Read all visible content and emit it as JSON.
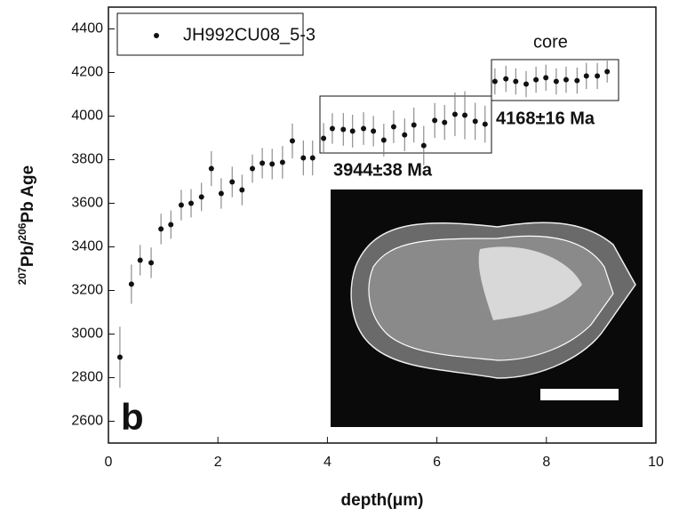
{
  "chart_data": {
    "type": "scatter",
    "x_label": "depth(μm)",
    "y_label": [
      "207",
      "Pb/",
      "206",
      "Pb Age"
    ],
    "panel_label": "b",
    "annotations": [
      "3944±38 Ma",
      "4168±16 Ma",
      "core"
    ],
    "xlim": [
      0,
      10
    ],
    "ylim": [
      2500,
      4500
    ],
    "xticks": [
      0,
      2,
      4,
      6,
      8,
      10
    ],
    "yticks": [
      2600,
      2800,
      3000,
      3200,
      3400,
      3600,
      3800,
      4000,
      4200,
      4400
    ],
    "legend": "upper left",
    "series": [
      {
        "name": "JH992CU08_5-3",
        "color": "#111111",
        "x": [
          0.21,
          0.42,
          0.58,
          0.78,
          0.96,
          1.14,
          1.33,
          1.51,
          1.7,
          1.88,
          2.06,
          2.26,
          2.44,
          2.63,
          2.81,
          2.99,
          3.18,
          3.36,
          3.56,
          3.73,
          3.93,
          4.09,
          4.29,
          4.46,
          4.66,
          4.84,
          5.03,
          5.21,
          5.41,
          5.58,
          5.76,
          5.96,
          6.14,
          6.33,
          6.51,
          6.7,
          6.88,
          7.06,
          7.26,
          7.44,
          7.63,
          7.81,
          7.99,
          8.18,
          8.36,
          8.56,
          8.73,
          8.93,
          9.11
        ],
        "values": [
          2894,
          3229,
          3339,
          3327,
          3482,
          3502,
          3592,
          3600,
          3629,
          3759,
          3645,
          3698,
          3661,
          3759,
          3784,
          3780,
          3788,
          3886,
          3808,
          3808,
          3898,
          3943,
          3939,
          3931,
          3943,
          3931,
          3890,
          3951,
          3914,
          3959,
          3865,
          3980,
          3971,
          4008,
          4004,
          3976,
          3963,
          4159,
          4171,
          4159,
          4147,
          4167,
          4176,
          4159,
          4167,
          4163,
          4184,
          4184,
          4204
        ],
        "errors": [
          140,
          90,
          70,
          70,
          70,
          65,
          70,
          65,
          65,
          80,
          70,
          70,
          70,
          65,
          70,
          70,
          75,
          80,
          80,
          80,
          70,
          70,
          75,
          75,
          75,
          70,
          75,
          75,
          75,
          80,
          90,
          80,
          80,
          100,
          110,
          85,
          85,
          60,
          60,
          60,
          60,
          60,
          60,
          60,
          60,
          60,
          60,
          60,
          50
        ]
      }
    ]
  }
}
